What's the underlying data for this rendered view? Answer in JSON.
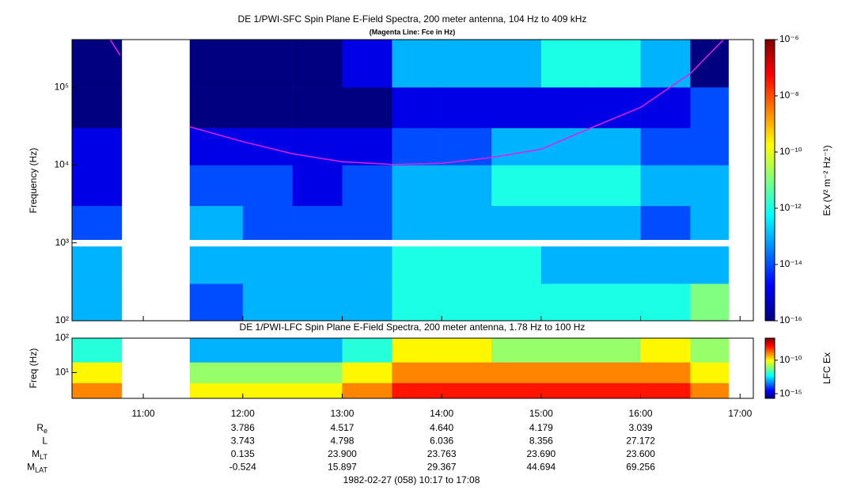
{
  "chart_data": [
    {
      "type": "heatmap",
      "title": "DE 1/PWI-SFC  Spin Plane E-Field Spectra, 200 meter antenna, 104 Hz to 409 kHz",
      "subtitle": "(Magenta Line: Fce in Hz)",
      "ylabel": "Frequency (Hz)",
      "zlabel": "Ex (V² m⁻² Hz⁻¹)",
      "log_y": true,
      "xlim": [
        617,
        1028
      ],
      "ylim": [
        100,
        409000
      ],
      "yticks": [
        {
          "value": 100,
          "label": "10²"
        },
        {
          "value": 1000,
          "label": "10³"
        },
        {
          "value": 10000,
          "label": "10⁴"
        },
        {
          "value": 100000,
          "label": "10⁵"
        }
      ],
      "zlim": [
        1e-16,
        1e-06
      ],
      "zticks": [
        {
          "value": 1e-06,
          "label": "10⁻⁶"
        },
        {
          "value": 1e-08,
          "label": "10⁻⁸"
        },
        {
          "value": 1e-10,
          "label": "10⁻¹⁰"
        },
        {
          "value": 1e-12,
          "label": "10⁻¹²"
        },
        {
          "value": 1e-14,
          "label": "10⁻¹⁴"
        },
        {
          "value": 1e-16,
          "label": "10⁻¹⁶"
        }
      ],
      "x_edges": [
        617,
        647,
        688,
        720,
        750,
        780,
        810,
        840,
        870,
        900,
        930,
        960,
        990,
        1013,
        1028
      ],
      "y_edges": [
        100,
        300,
        900,
        1100,
        3000,
        10000,
        30000,
        100000,
        409000
      ],
      "z": [
        [
          1e-13,
          null,
          1e-14,
          1e-13,
          1e-13,
          1e-13,
          1e-12,
          1e-12,
          1e-12,
          1e-12,
          1e-12,
          1e-12,
          1e-11,
          null
        ],
        [
          1e-13,
          null,
          1e-13,
          1e-13,
          1e-13,
          1e-13,
          1e-12,
          1e-12,
          1e-12,
          1e-13,
          1e-13,
          1e-13,
          1e-13,
          null
        ],
        [
          null,
          null,
          null,
          null,
          null,
          null,
          null,
          null,
          null,
          null,
          null,
          null,
          null,
          null
        ],
        [
          1e-14,
          null,
          1e-13,
          1e-14,
          1e-14,
          1e-14,
          1e-13,
          1e-13,
          1e-13,
          1e-13,
          1e-13,
          1e-14,
          1e-13,
          null
        ],
        [
          1e-15,
          null,
          1e-14,
          1e-14,
          1e-15,
          1e-14,
          1e-13,
          1e-13,
          1e-12,
          1e-12,
          1e-12,
          1e-13,
          1e-13,
          null
        ],
        [
          1e-15,
          null,
          1e-15,
          1e-15,
          1e-15,
          1e-15,
          1e-14,
          1e-14,
          1e-13,
          1e-13,
          1e-13,
          1e-14,
          1e-14,
          null
        ],
        [
          1e-16,
          null,
          1e-16,
          1e-16,
          1e-16,
          1e-16,
          1e-15,
          1e-15,
          1e-15,
          1e-15,
          1e-15,
          1e-15,
          1e-14,
          null
        ],
        [
          1e-16,
          null,
          1e-16,
          1e-16,
          1e-16,
          1e-15,
          1e-13,
          1e-13,
          1e-13,
          1e-12,
          1e-12,
          1e-13,
          1e-16,
          null
        ]
      ],
      "series": [
        {
          "color": "#e020e0",
          "x": [
            640,
            646,
            667,
            688,
            720,
            750,
            780,
            810,
            840,
            870,
            900,
            930,
            960,
            990,
            1010
          ],
          "values": [
            409000,
            257000,
            null,
            31000,
            20000,
            14000,
            11000,
            10200,
            10500,
            12500,
            16000,
            30000,
            55000,
            150000,
            409000
          ]
        }
      ]
    },
    {
      "type": "heatmap",
      "title": "DE 1/PWI-LFC  Spin Plane E-Field Spectra, 200 meter antenna, 1.78 Hz to 100 Hz",
      "ylabel": "Freq (Hz)",
      "zlabel": "LFC Ex",
      "log_y": true,
      "xlim": [
        617,
        1028
      ],
      "xticks": [
        {
          "value": 660,
          "label": "11:00"
        },
        {
          "value": 720,
          "label": "12:00"
        },
        {
          "value": 780,
          "label": "13:00"
        },
        {
          "value": 840,
          "label": "14:00"
        },
        {
          "value": 900,
          "label": "15:00"
        },
        {
          "value": 960,
          "label": "16:00"
        },
        {
          "value": 1020,
          "label": "17:00"
        }
      ],
      "ylim": [
        1.78,
        100
      ],
      "yticks": [
        {
          "value": 10,
          "label": "10¹"
        },
        {
          "value": 100,
          "label": "10²"
        }
      ],
      "zlim": [
        2e-16,
        2e-07
      ],
      "zticks": [
        {
          "value": 1e-10,
          "label": "10⁻¹⁰"
        },
        {
          "value": 1e-15,
          "label": "10⁻¹⁵"
        }
      ],
      "x_edges": [
        617,
        647,
        688,
        720,
        750,
        780,
        810,
        840,
        870,
        900,
        930,
        960,
        990,
        1013,
        1028
      ],
      "y_edges": [
        1.78,
        5,
        20,
        100
      ],
      "z": [
        [
          1e-09,
          null,
          1e-10,
          1e-10,
          1e-10,
          1e-09,
          1e-08,
          1e-08,
          1e-08,
          1e-08,
          1e-08,
          1e-08,
          1e-09,
          null
        ],
        [
          1e-10,
          null,
          1e-11,
          1e-11,
          1e-11,
          1e-10,
          1e-09,
          1e-09,
          1e-09,
          1e-09,
          1e-09,
          1e-09,
          1e-10,
          null
        ],
        [
          1e-12,
          null,
          1e-13,
          1e-13,
          1e-13,
          1e-12,
          1e-10,
          1e-10,
          1e-11,
          1e-11,
          1e-11,
          1e-10,
          1e-11,
          null
        ]
      ]
    }
  ],
  "ephemeris": [
    {
      "label": "R",
      "sub": "e",
      "values": [
        "3.786",
        "4.517",
        "4.640",
        "4.179",
        "3.039"
      ]
    },
    {
      "label": "L",
      "values": [
        "3.743",
        "4.798",
        "6.036",
        "8.356",
        "27.172"
      ]
    },
    {
      "label": "M",
      "sub": "LT",
      "values": [
        "0.135",
        "23.900",
        "23.763",
        "23.690",
        "23.600"
      ]
    },
    {
      "label": "M",
      "sub": "LAT",
      "values": [
        "-0.524",
        "15.897",
        "29.367",
        "44.694",
        "69.256"
      ]
    }
  ],
  "footer": "1982-02-27 (058) 10:17 to 17:08"
}
